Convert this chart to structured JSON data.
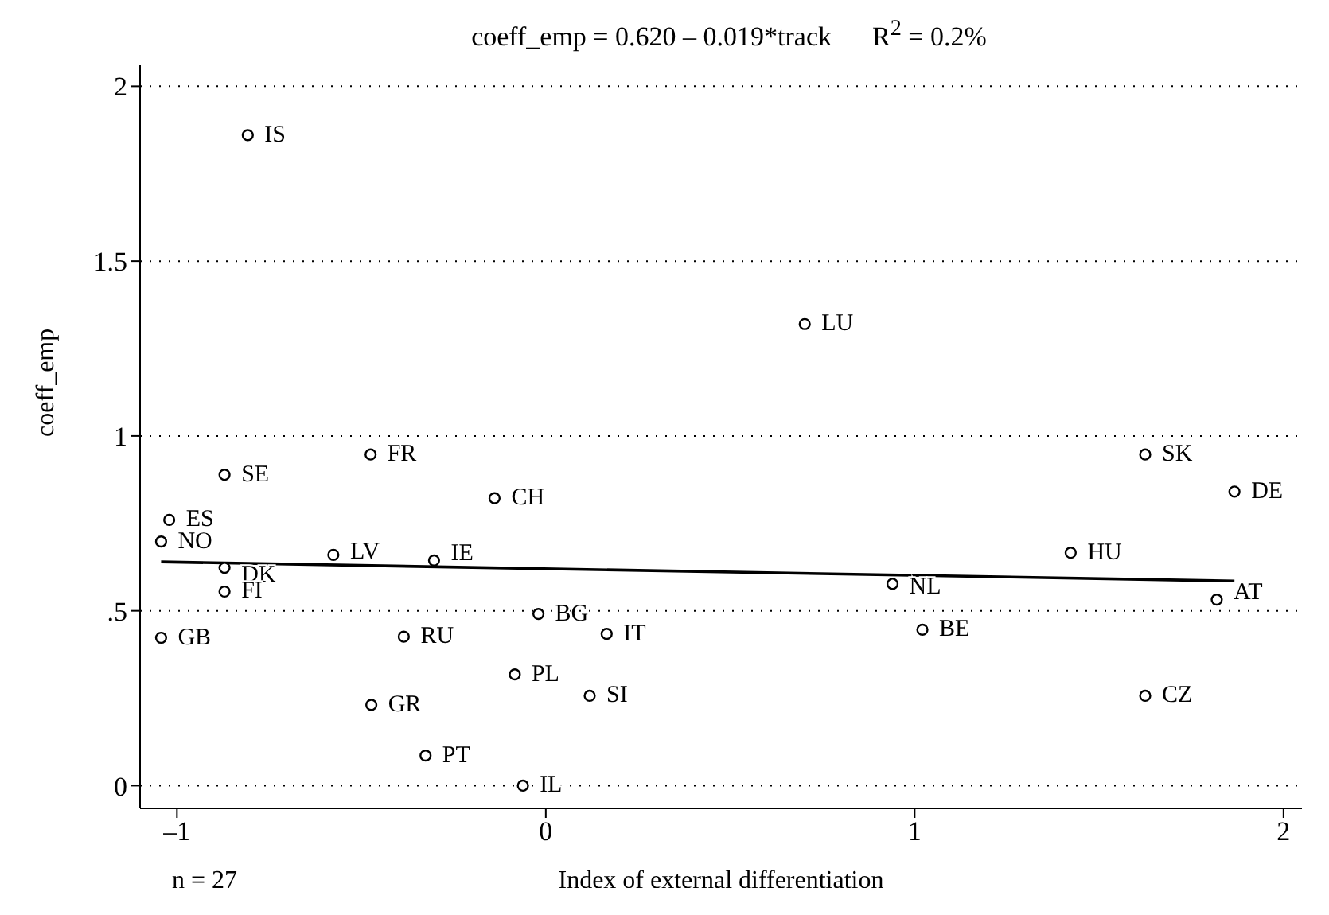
{
  "chart_data": {
    "type": "scatter",
    "title": "coeff_emp = 0.620 – 0.019*track      R$^{2}$ = 0.2%",
    "xlabel": "Index of external differentiation",
    "ylabel": "coeff_emp",
    "annotations": [
      "n = 27"
    ],
    "xlim": [
      -1.1,
      2.05
    ],
    "ylim": [
      -0.065,
      2.06
    ],
    "xticks": [
      {
        "value": -1,
        "label": "–1"
      },
      0,
      1,
      2
    ],
    "yticks": [
      0,
      {
        "value": 0.5,
        "label": ".5"
      },
      1,
      1.5,
      2
    ],
    "grid": "y",
    "marker": "circle",
    "series": [
      {
        "name": "IS",
        "color": "#000000",
        "x": [
          -0.808
        ],
        "values": [
          1.86
        ]
      },
      {
        "name": "LU",
        "color": "#000000",
        "x": [
          0.702
        ],
        "values": [
          1.32
        ]
      },
      {
        "name": "SE",
        "color": "#000000",
        "x": [
          -0.871
        ],
        "values": [
          0.889
        ]
      },
      {
        "name": "FR",
        "color": "#000000",
        "x": [
          -0.475
        ],
        "values": [
          0.947
        ]
      },
      {
        "name": "ES",
        "color": "#000000",
        "x": [
          -1.021
        ],
        "values": [
          0.76
        ]
      },
      {
        "name": "NO",
        "color": "#000000",
        "x": [
          -1.043
        ],
        "values": [
          0.698
        ]
      },
      {
        "name": "CH",
        "color": "#000000",
        "x": [
          -0.139
        ],
        "values": [
          0.822
        ]
      },
      {
        "name": "LV",
        "color": "#000000",
        "x": [
          -0.576
        ],
        "values": [
          0.66
        ]
      },
      {
        "name": "IE",
        "color": "#000000",
        "x": [
          -0.303
        ],
        "values": [
          0.644
        ]
      },
      {
        "name": "DK",
        "color": "#000000",
        "x": [
          -0.871
        ],
        "values": [
          0.623
        ]
      },
      {
        "name": "FI",
        "color": "#000000",
        "x": [
          -0.871
        ],
        "values": [
          0.555
        ]
      },
      {
        "name": "GB",
        "color": "#000000",
        "x": [
          -1.043
        ],
        "values": [
          0.423
        ]
      },
      {
        "name": "RU",
        "color": "#000000",
        "x": [
          -0.385
        ],
        "values": [
          0.426
        ]
      },
      {
        "name": "GR",
        "color": "#000000",
        "x": [
          -0.473
        ],
        "values": [
          0.231
        ]
      },
      {
        "name": "PT",
        "color": "#000000",
        "x": [
          -0.326
        ],
        "values": [
          0.086
        ]
      },
      {
        "name": "IL",
        "color": "#000000",
        "x": [
          -0.062
        ],
        "values": [
          0.0
        ]
      },
      {
        "name": "PL",
        "color": "#000000",
        "x": [
          -0.084
        ],
        "values": [
          0.318
        ]
      },
      {
        "name": "BG",
        "color": "#000000",
        "x": [
          -0.02
        ],
        "values": [
          0.491
        ]
      },
      {
        "name": "IT",
        "color": "#000000",
        "x": [
          0.165
        ],
        "values": [
          0.434
        ]
      },
      {
        "name": "SI",
        "color": "#000000",
        "x": [
          0.119
        ],
        "values": [
          0.257
        ]
      },
      {
        "name": "NL",
        "color": "#000000",
        "x": [
          0.94
        ],
        "values": [
          0.577
        ]
      },
      {
        "name": "BE",
        "color": "#000000",
        "x": [
          1.021
        ],
        "values": [
          0.446
        ]
      },
      {
        "name": "SK",
        "color": "#000000",
        "x": [
          1.625
        ],
        "values": [
          0.947
        ]
      },
      {
        "name": "DE",
        "color": "#000000",
        "x": [
          1.867
        ],
        "values": [
          0.841
        ]
      },
      {
        "name": "HU",
        "color": "#000000",
        "x": [
          1.423
        ],
        "values": [
          0.666
        ]
      },
      {
        "name": "AT",
        "color": "#000000",
        "x": [
          1.819
        ],
        "values": [
          0.532
        ]
      },
      {
        "name": "CZ",
        "color": "#000000",
        "x": [
          1.625
        ],
        "values": [
          0.257
        ]
      },
      {
        "type": "line",
        "marker": "none",
        "color": "#000000",
        "x": [
          -1.043,
          1.867
        ],
        "values": [
          0.64,
          0.585
        ]
      }
    ]
  }
}
